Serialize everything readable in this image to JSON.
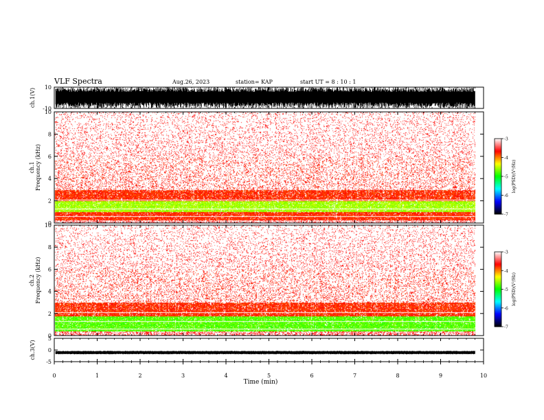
{
  "header": {
    "title": "VLF Spectra",
    "date": "Aug.26, 2023",
    "station": "station= KAP",
    "start": "start  UT  =   8  : 10 : 1"
  },
  "chart_data": [
    {
      "type": "line",
      "panel": "ch1-waveform",
      "ylabel": "ch.1(V)",
      "ylim": [
        -10,
        10
      ],
      "yticks": [
        "10",
        "-10"
      ],
      "xlim": [
        0,
        10
      ],
      "note": "dense noisy waveform spanning roughly -10 to 10 V, ending near 9.8 min"
    },
    {
      "type": "heatmap",
      "panel": "ch1-spectrogram",
      "ylabel": "ch.1\nFrequency  (kHz)",
      "ylim": [
        0,
        10
      ],
      "yticks": [
        "0",
        "2",
        "4",
        "6",
        "8",
        "10"
      ],
      "xlim": [
        0,
        10
      ],
      "data_end_min": 9.8,
      "colorbar": {
        "label": "log(PSD)(V²/Hz)",
        "range": [
          -7,
          -3
        ],
        "ticks": [
          "-3",
          "-4",
          "-5",
          "-6",
          "-7"
        ]
      },
      "intensity_profile": [
        {
          "freq_khz": [
            0,
            0.3
          ],
          "level": -3.3
        },
        {
          "freq_khz": [
            0.3,
            1.0
          ],
          "level": -3.6
        },
        {
          "freq_khz": [
            1.0,
            2.0
          ],
          "level": -4.4
        },
        {
          "freq_khz": [
            2.0,
            3.0
          ],
          "level": -3.6
        },
        {
          "freq_khz": [
            3.0,
            6.0
          ],
          "level": -3.4
        },
        {
          "freq_khz": [
            6.0,
            10.0
          ],
          "level": -3.3
        }
      ]
    },
    {
      "type": "heatmap",
      "panel": "ch2-spectrogram",
      "ylabel": "ch.2\nFrequency  (kHz)",
      "ylim": [
        0,
        10
      ],
      "yticks": [
        "0",
        "2",
        "4",
        "6",
        "8",
        "10"
      ],
      "xlim": [
        0,
        10
      ],
      "data_end_min": 9.8,
      "colorbar": {
        "label": "log(PSD)(V²/Hz)",
        "range": [
          -7,
          -3
        ],
        "ticks": [
          "-3",
          "-4",
          "-5",
          "-6",
          "-7"
        ]
      },
      "intensity_profile": [
        {
          "freq_khz": [
            0,
            0.4
          ],
          "level": -3.4
        },
        {
          "freq_khz": [
            0.4,
            1.8
          ],
          "level": -4.6
        },
        {
          "freq_khz": [
            1.8,
            3.0
          ],
          "level": -3.6
        },
        {
          "freq_khz": [
            3.0,
            6.0
          ],
          "level": -3.4
        },
        {
          "freq_khz": [
            6.0,
            10.0
          ],
          "level": -3.3
        }
      ]
    },
    {
      "type": "line",
      "panel": "ch3-waveform",
      "ylabel": "ch.3(V)",
      "ylim": [
        -5,
        5
      ],
      "yticks": [
        "5",
        "0",
        "-5"
      ],
      "xlim": [
        0,
        10
      ],
      "note": "narrow band around -1 V, ending near 9.8 min"
    }
  ],
  "xaxis": {
    "label": "Time  (min)",
    "ticks": [
      "0",
      "1",
      "2",
      "3",
      "4",
      "5",
      "6",
      "7",
      "8",
      "9",
      "10"
    ]
  },
  "colors": {
    "background": "#ffffff",
    "axis": "#000000",
    "colormap": [
      "#000000",
      "#0000ff",
      "#00ffff",
      "#00ff00",
      "#ffff00",
      "#ff0000",
      "#ffffff"
    ]
  }
}
